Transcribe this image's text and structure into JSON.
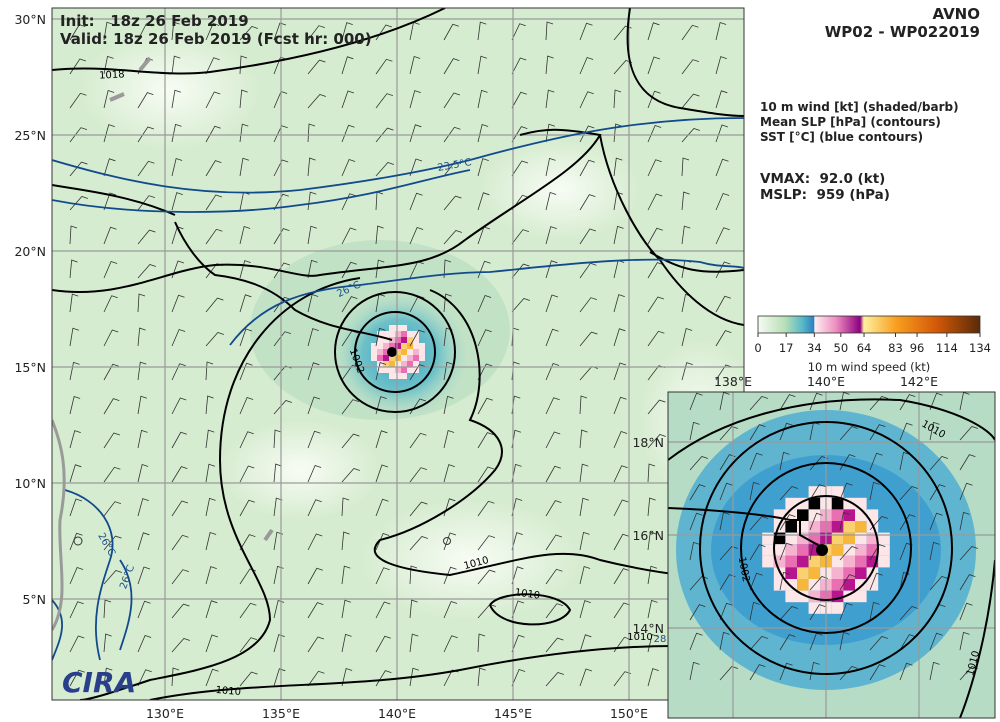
{
  "header": {
    "init": "Init:   18z 26 Feb 2019",
    "valid": "Valid: 18z 26 Feb 2019 (Fcst hr: 000)"
  },
  "model": "AVNO",
  "storm": "WP02 - WP022019",
  "legend": [
    "10 m wind [kt] (shaded/barb)",
    "Mean SLP [hPa] (contours)",
    "SST [°C] (blue contours)"
  ],
  "vmax": "VMAX:  92.0 (kt)",
  "mslp": "MSLP:  959 (hPa)",
  "colorbar": {
    "ticks": [
      0,
      17,
      34,
      50,
      64,
      83,
      96,
      114,
      134
    ],
    "label": "10 m wind speed (kt)"
  },
  "main_map": {
    "lat_ticks": [
      {
        "value": 30,
        "label": "30°N"
      },
      {
        "value": 25,
        "label": "25°N"
      },
      {
        "value": 20,
        "label": "20°N"
      },
      {
        "value": 15,
        "label": "15°N"
      },
      {
        "value": 10,
        "label": "10°N"
      },
      {
        "value": 5,
        "label": "5°N"
      }
    ],
    "lon_ticks": [
      {
        "value": 130,
        "label": "130°E"
      },
      {
        "value": 135,
        "label": "135°E"
      },
      {
        "value": 140,
        "label": "140°E"
      },
      {
        "value": 145,
        "label": "145°E"
      },
      {
        "value": 150,
        "label": "150°E"
      }
    ]
  },
  "inset_map": {
    "lat_ticks": [
      {
        "value": 18,
        "label": "18°N"
      },
      {
        "value": 16,
        "label": "16°N"
      },
      {
        "value": 14,
        "label": "14°N"
      }
    ],
    "lon_ticks": [
      {
        "value": 138,
        "label": "138°E"
      },
      {
        "value": 140,
        "label": "140°E"
      },
      {
        "value": 142,
        "label": "142°E"
      }
    ]
  },
  "contour_labels": [
    "1018",
    "1002",
    "1010",
    "1010",
    "1010",
    "1010",
    "1002",
    "1010",
    "1010"
  ],
  "sst_labels": [
    "23.5°C",
    "26°C",
    "26°C",
    "26°C",
    "28"
  ],
  "logo": "CIRA"
}
